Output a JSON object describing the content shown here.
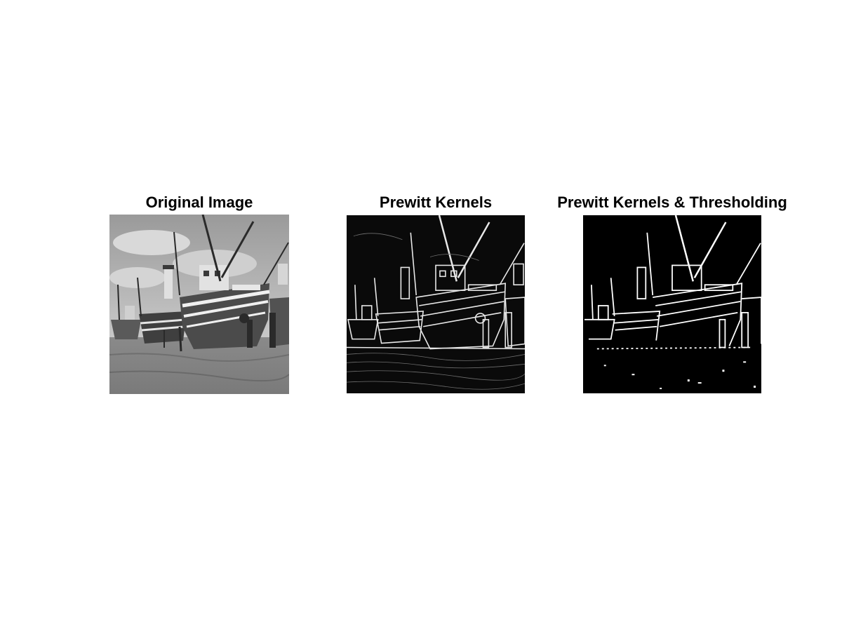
{
  "figure": {
    "panels": [
      {
        "title": "Original Image",
        "kind": "photo",
        "background": "#8c8c8c",
        "line_color": "#1a1a1a"
      },
      {
        "title": "Prewitt Kernels",
        "kind": "edges",
        "background": "#0a0a0a",
        "line_color": "#e8e8e8"
      },
      {
        "title": "Prewitt Kernels & Thresholding",
        "kind": "binary",
        "background": "#000000",
        "line_color": "#ffffff"
      }
    ]
  }
}
